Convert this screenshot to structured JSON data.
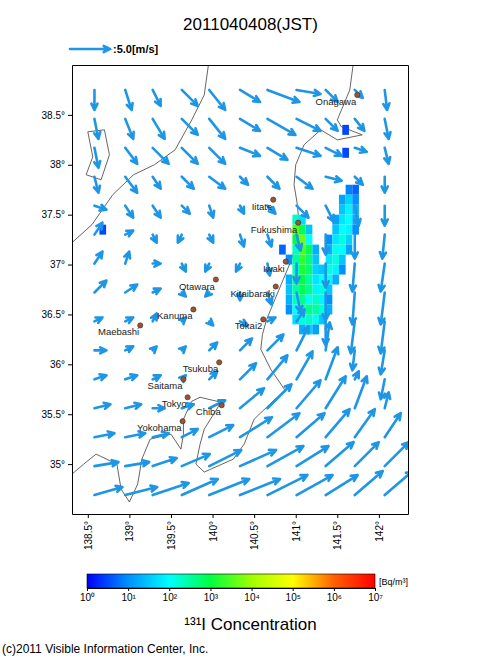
{
  "chart_data": {
    "type": "map",
    "title": "2011040408(JST)",
    "log": true,
    "xlim": [
      138.31,
      142.35
    ],
    "xticks": [
      {
        "value": 138.5,
        "label": "138.5°"
      },
      {
        "value": 139,
        "label": "139°"
      },
      {
        "value": 139.5,
        "label": "139.5°"
      },
      {
        "value": 140,
        "label": "140°"
      },
      {
        "value": 140.5,
        "label": "140.5°"
      },
      {
        "value": 141,
        "label": "141°"
      },
      {
        "value": 141.5,
        "label": "141.5°"
      },
      {
        "value": 142,
        "label": "142°"
      }
    ],
    "ylim": [
      34.5,
      39.0
    ],
    "yticks": [
      {
        "value": 35,
        "label": "35°"
      },
      {
        "value": 35.5,
        "label": "35.5°"
      },
      {
        "value": 36,
        "label": "36°"
      },
      {
        "value": 36.5,
        "label": "36.5°"
      },
      {
        "value": 37,
        "label": "37°"
      },
      {
        "value": 37.5,
        "label": "37.5°"
      },
      {
        "value": 38,
        "label": "38°"
      },
      {
        "value": 38.5,
        "label": "38.5°"
      }
    ],
    "wind": {
      "reference": 5,
      "reference_label": ":5.0[m/s]",
      "color": "#1e96e6",
      "lon": [
        138.58,
        138.95,
        139.28,
        139.63,
        139.96,
        140.33,
        140.66,
        141.01,
        141.36,
        141.71,
        142.07
      ],
      "lat": [
        38.75,
        38.46,
        38.17,
        37.88,
        37.59,
        37.3,
        37.01,
        36.72,
        36.43,
        36.14,
        35.85,
        35.56,
        35.27,
        34.98,
        34.69
      ],
      "u": [
        [
          0,
          0.8,
          1,
          2,
          2,
          2.5,
          4,
          3,
          1.5,
          1,
          0.3
        ],
        [
          0.5,
          1,
          1.5,
          2,
          2,
          2.5,
          3.5,
          3,
          1.5,
          1.2,
          0.5
        ],
        [
          0.5,
          1.5,
          2,
          2,
          2,
          2.5,
          2.5,
          3,
          2,
          1.5,
          0.5
        ],
        [
          0.5,
          1.5,
          1,
          1.5,
          2,
          1,
          1.5,
          2,
          2,
          1,
          0
        ],
        [
          1.5,
          1,
          1,
          1,
          0.5,
          0.5,
          1,
          1.5,
          1,
          0.5,
          0
        ],
        [
          1,
          1,
          0.5,
          -0.5,
          0.5,
          0.5,
          0.5,
          0.5,
          0,
          0,
          -0.3
        ],
        [
          1,
          0.5,
          1,
          0.5,
          -0.5,
          -0.5,
          0.3,
          0,
          0,
          -0.3,
          -0.5
        ],
        [
          1.5,
          1.5,
          1,
          0.5,
          -0.5,
          0,
          0.5,
          0.5,
          0,
          -0.3,
          -0.5
        ],
        [
          1,
          1,
          0.5,
          0.5,
          0.5,
          1,
          1,
          1,
          0,
          -0.5,
          -0.5
        ],
        [
          1.5,
          1,
          0.5,
          0.5,
          1,
          1.5,
          2,
          1.5,
          0.5,
          -0.3,
          -0.5
        ],
        [
          1.5,
          1.5,
          1,
          0.5,
          1,
          2,
          2.5,
          2,
          1.5,
          0.5,
          -0.5
        ],
        [
          2,
          2,
          1.5,
          1.5,
          2,
          3,
          3,
          3,
          2.5,
          1.5,
          0.5
        ],
        [
          2.5,
          2.5,
          2,
          2,
          3,
          4,
          4,
          3.5,
          3,
          2.5,
          2
        ],
        [
          3,
          3,
          3,
          3.5,
          4,
          4.5,
          4.5,
          4,
          3.5,
          3,
          3
        ],
        [
          3.5,
          4,
          4.5,
          4.5,
          5,
          5,
          5,
          4.5,
          4,
          3.5,
          3.5
        ]
      ],
      "v": [
        [
          -2.5,
          -2.5,
          -2,
          -2,
          -2.5,
          -1.5,
          -1.5,
          -0.5,
          -1.5,
          -1,
          -2.5
        ],
        [
          -2.5,
          -2.5,
          -2.5,
          -2,
          -2.5,
          -1.5,
          -2,
          -1.5,
          -1.5,
          -1.5,
          -2.5
        ],
        [
          -2.5,
          -2,
          -2,
          -2,
          -2,
          -1,
          -1.5,
          -1,
          -1,
          -0.5,
          -2
        ],
        [
          -2,
          -2,
          -1.5,
          -1.5,
          -1.5,
          -1,
          -1.5,
          -1.5,
          -0.5,
          -1,
          -2
        ],
        [
          -0.5,
          -1.5,
          -1.5,
          -1,
          -1.5,
          -1,
          -1,
          -1.5,
          -2,
          -2.5,
          -2.5
        ],
        [
          1.5,
          0.5,
          -1,
          -1,
          -1,
          -1.5,
          -1.5,
          -2,
          -2.5,
          -3,
          -3
        ],
        [
          1.5,
          1.5,
          0,
          -1,
          -1,
          -1,
          -1.5,
          -2.5,
          -3,
          -3.5,
          -3.5
        ],
        [
          1.5,
          1,
          0.5,
          -0.5,
          -0.5,
          -1,
          -1.5,
          -2.5,
          -3.5,
          -4,
          -4
        ],
        [
          0.5,
          0.5,
          1,
          0.5,
          -0.5,
          -0.5,
          0.5,
          1.5,
          -3,
          -4,
          -4
        ],
        [
          0,
          0.5,
          0.5,
          0.5,
          1,
          1.5,
          2,
          3,
          3.5,
          -2.5,
          -3
        ],
        [
          0.5,
          0.5,
          0.5,
          0.5,
          1,
          2,
          3,
          3.5,
          4,
          1,
          -2.5
        ],
        [
          0.5,
          0.5,
          0,
          0.5,
          1,
          2.5,
          3,
          3.5,
          4,
          4,
          2
        ],
        [
          0.5,
          0.5,
          0.5,
          1,
          1.5,
          2.5,
          3,
          3,
          3.5,
          3.5,
          3
        ],
        [
          0.5,
          0.5,
          1,
          1.5,
          2,
          2,
          2.5,
          2.5,
          3,
          3,
          3
        ],
        [
          1,
          1,
          1.5,
          2,
          2,
          2,
          2.5,
          2.5,
          2.5,
          3,
          3
        ]
      ]
    },
    "cell_size": [
      0.08,
      0.1
    ],
    "cells": [
      [
        141.64,
        37.75,
        8
      ],
      [
        141.72,
        37.75,
        5
      ],
      [
        141.56,
        37.65,
        15
      ],
      [
        141.64,
        37.65,
        40
      ],
      [
        141.72,
        37.65,
        10
      ],
      [
        141.56,
        37.55,
        30
      ],
      [
        141.64,
        37.55,
        80
      ],
      [
        141.72,
        37.55,
        20
      ],
      [
        141.48,
        37.45,
        15
      ],
      [
        141.56,
        37.45,
        60
      ],
      [
        141.64,
        37.45,
        100
      ],
      [
        141.72,
        37.45,
        20
      ],
      [
        141.48,
        37.35,
        30
      ],
      [
        141.56,
        37.35,
        100
      ],
      [
        141.64,
        37.35,
        80
      ],
      [
        141.72,
        37.35,
        10
      ],
      [
        141.4,
        37.25,
        10
      ],
      [
        141.48,
        37.25,
        60
      ],
      [
        141.56,
        37.25,
        150
      ],
      [
        141.64,
        37.25,
        40
      ],
      [
        141.4,
        37.15,
        20
      ],
      [
        141.48,
        37.15,
        120
      ],
      [
        141.56,
        37.15,
        100
      ],
      [
        141.64,
        37.15,
        15
      ],
      [
        141.4,
        37.05,
        60
      ],
      [
        141.48,
        37.05,
        150
      ],
      [
        141.56,
        37.05,
        30
      ],
      [
        141.32,
        36.95,
        30
      ],
      [
        141.4,
        36.95,
        150
      ],
      [
        141.48,
        36.95,
        80
      ],
      [
        141.56,
        36.95,
        10
      ],
      [
        141.32,
        36.85,
        100
      ],
      [
        141.4,
        36.85,
        120
      ],
      [
        141.48,
        36.85,
        20
      ],
      [
        141.24,
        36.75,
        80
      ],
      [
        141.32,
        36.75,
        150
      ],
      [
        141.4,
        36.75,
        30
      ],
      [
        141.16,
        36.65,
        100
      ],
      [
        141.24,
        36.65,
        200
      ],
      [
        141.32,
        36.65,
        80
      ],
      [
        141.4,
        36.65,
        10
      ],
      [
        141.0,
        37.45,
        200
      ],
      [
        141.08,
        37.45,
        50
      ],
      [
        141.0,
        37.35,
        3000
      ],
      [
        141.08,
        37.35,
        800
      ],
      [
        141.16,
        37.35,
        30
      ],
      [
        141.0,
        37.25,
        1000
      ],
      [
        141.08,
        37.25,
        5000
      ],
      [
        141.16,
        37.25,
        100
      ],
      [
        141.0,
        37.15,
        200
      ],
      [
        141.08,
        37.15,
        3000
      ],
      [
        141.16,
        37.15,
        800
      ],
      [
        141.24,
        37.15,
        20
      ],
      [
        140.92,
        37.05,
        10
      ],
      [
        141.0,
        37.05,
        300
      ],
      [
        141.08,
        37.05,
        2000
      ],
      [
        141.16,
        37.05,
        500
      ],
      [
        141.24,
        37.05,
        30
      ],
      [
        141.0,
        36.95,
        200
      ],
      [
        141.08,
        36.95,
        1500
      ],
      [
        141.16,
        36.95,
        600
      ],
      [
        141.24,
        36.95,
        40
      ],
      [
        140.92,
        36.85,
        20
      ],
      [
        141.0,
        36.85,
        400
      ],
      [
        141.08,
        36.85,
        1000
      ],
      [
        141.16,
        36.85,
        300
      ],
      [
        141.24,
        36.85,
        60
      ],
      [
        140.92,
        36.75,
        30
      ],
      [
        141.0,
        36.75,
        300
      ],
      [
        141.08,
        36.75,
        800
      ],
      [
        141.16,
        36.75,
        400
      ],
      [
        140.92,
        36.65,
        20
      ],
      [
        141.0,
        36.65,
        200
      ],
      [
        141.08,
        36.65,
        400
      ],
      [
        140.92,
        36.55,
        10
      ],
      [
        141.0,
        36.55,
        100
      ],
      [
        141.08,
        36.55,
        300
      ],
      [
        141.16,
        36.55,
        400
      ],
      [
        141.24,
        36.55,
        300
      ],
      [
        141.32,
        36.55,
        150
      ],
      [
        141.4,
        36.55,
        20
      ],
      [
        141.0,
        36.45,
        50
      ],
      [
        141.08,
        36.45,
        150
      ],
      [
        141.16,
        36.45,
        200
      ],
      [
        141.24,
        36.45,
        120
      ],
      [
        141.32,
        36.45,
        30
      ],
      [
        141.08,
        36.35,
        20
      ],
      [
        141.16,
        36.35,
        40
      ],
      [
        141.24,
        36.35,
        15
      ],
      [
        141.6,
        38.35,
        3
      ],
      [
        141.6,
        38.12,
        3
      ],
      [
        140.84,
        37.15,
        5
      ],
      [
        138.68,
        37.35,
        3
      ]
    ],
    "colorbar": {
      "range": [
        1,
        10000000
      ],
      "ticks": [
        {
          "value": 1,
          "label": "10⁰"
        },
        {
          "value": 10,
          "label": "10¹"
        },
        {
          "value": 100,
          "label": "10²"
        },
        {
          "value": 1000,
          "label": "10³"
        },
        {
          "value": 10000,
          "label": "10⁴"
        },
        {
          "value": 100000,
          "label": "10⁵"
        },
        {
          "value": 1000000,
          "label": "10⁶"
        },
        {
          "value": 10000000,
          "label": "10⁷"
        }
      ],
      "colors": [
        "#0000ff",
        "#0090ff",
        "#00ffff",
        "#00ff40",
        "#a0ff00",
        "#ffff00",
        "#ff6000",
        "#ff0000"
      ],
      "unit": "[Bq/m³]",
      "title": "¹³¹I Concentration"
    },
    "city_color": "#a0522d",
    "cities": [
      {
        "name": "Onagawa",
        "lon": 141.74,
        "lat": 38.7
      },
      {
        "name": "Iitate",
        "lon": 140.73,
        "lat": 37.65
      },
      {
        "name": "Fukushima",
        "lon": 141.03,
        "lat": 37.42
      },
      {
        "name": "Iwaki",
        "lon": 140.88,
        "lat": 37.03
      },
      {
        "name": "Kitaibaraki",
        "lon": 140.76,
        "lat": 36.78
      },
      {
        "name": "Tokai2",
        "lon": 140.61,
        "lat": 36.45
      },
      {
        "name": "Otawara",
        "lon": 140.04,
        "lat": 36.85
      },
      {
        "name": "Kanuma",
        "lon": 139.77,
        "lat": 36.55
      },
      {
        "name": "Maebashi",
        "lon": 139.13,
        "lat": 36.39
      },
      {
        "name": "Tsukuba",
        "lon": 140.08,
        "lat": 36.02
      },
      {
        "name": "Saitama",
        "lon": 139.65,
        "lat": 35.85
      },
      {
        "name": "Tokyo",
        "lon": 139.7,
        "lat": 35.67
      },
      {
        "name": "Chiba",
        "lon": 140.11,
        "lat": 35.59
      },
      {
        "name": "Yokohama",
        "lon": 139.64,
        "lat": 35.43
      }
    ],
    "coastlines": [
      [
        [
          141.69,
          39.0
        ],
        [
          141.65,
          38.75
        ],
        [
          141.55,
          38.55
        ],
        [
          141.5,
          38.45
        ],
        [
          141.55,
          38.38
        ],
        [
          141.8,
          38.3
        ],
        [
          141.5,
          38.25
        ],
        [
          141.3,
          38.35
        ],
        [
          141.1,
          38.2
        ],
        [
          141.0,
          38.0
        ],
        [
          140.98,
          37.8
        ],
        [
          141.02,
          37.6
        ],
        [
          141.04,
          37.4
        ],
        [
          141.0,
          37.2
        ],
        [
          140.95,
          37.05
        ],
        [
          140.85,
          36.85
        ],
        [
          140.75,
          36.65
        ],
        [
          140.65,
          36.45
        ],
        [
          140.6,
          36.3
        ],
        [
          140.58,
          36.15
        ],
        [
          140.7,
          35.95
        ],
        [
          140.88,
          35.73
        ],
        [
          140.75,
          35.65
        ],
        [
          140.5,
          35.45
        ],
        [
          140.38,
          35.2
        ],
        [
          140.25,
          35.05
        ],
        [
          139.9,
          34.92
        ],
        [
          139.8,
          35.0
        ],
        [
          139.85,
          35.2
        ],
        [
          139.9,
          35.35
        ],
        [
          140.05,
          35.55
        ],
        [
          140.1,
          35.62
        ],
        [
          139.85,
          35.67
        ],
        [
          139.75,
          35.63
        ],
        [
          139.65,
          35.45
        ],
        [
          139.65,
          35.3
        ],
        [
          139.62,
          35.15
        ],
        [
          139.5,
          35.3
        ],
        [
          139.25,
          35.25
        ],
        [
          139.15,
          35.05
        ],
        [
          139.1,
          34.8
        ],
        [
          139.0,
          34.62
        ],
        [
          138.9,
          34.75
        ],
        [
          138.85,
          35.0
        ],
        [
          138.6,
          35.1
        ],
        [
          138.45,
          35.0
        ],
        [
          138.31,
          34.9
        ]
      ],
      [
        [
          139.95,
          39.0
        ],
        [
          139.9,
          38.7
        ],
        [
          139.75,
          38.45
        ],
        [
          139.55,
          38.15
        ],
        [
          139.3,
          38.0
        ],
        [
          139.05,
          37.9
        ],
        [
          138.8,
          37.7
        ],
        [
          138.55,
          37.4
        ],
        [
          138.31,
          37.22
        ]
      ],
      [
        [
          138.5,
          38.33
        ],
        [
          138.7,
          38.35
        ],
        [
          138.76,
          38.1
        ],
        [
          138.66,
          37.85
        ],
        [
          138.48,
          37.9
        ],
        [
          138.56,
          38.08
        ],
        [
          138.5,
          38.33
        ]
      ]
    ],
    "copyright": "(c)2011 Visible Information Center, Inc."
  }
}
